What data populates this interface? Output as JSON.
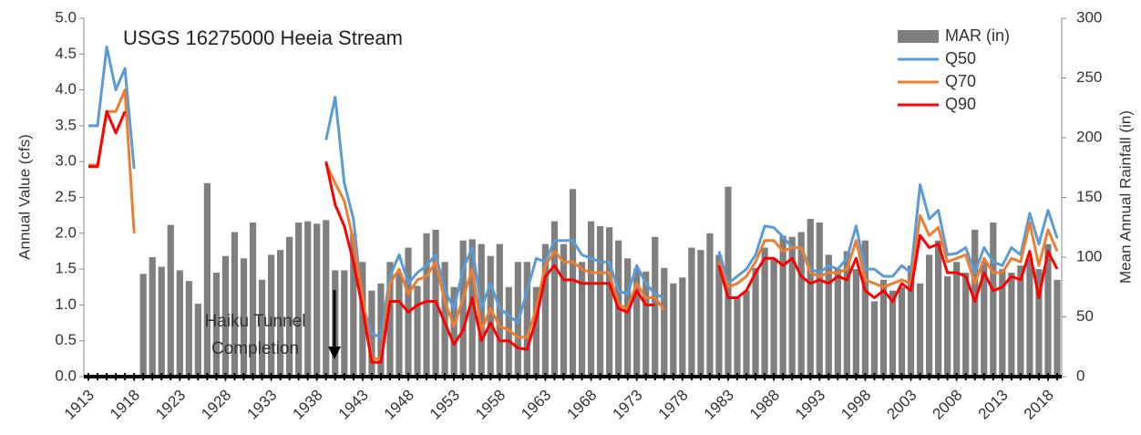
{
  "chart_data": {
    "type": "combo",
    "title": "USGS 16275000 Heeia Stream",
    "y_label": "Annual Value (cfs)",
    "y2_label": "Mean Annual Rainfall (in)",
    "annotation": [
      "Haiku Tunnel",
      "Completion"
    ],
    "x": [
      1913,
      1914,
      1915,
      1916,
      1917,
      1918,
      1919,
      1920,
      1921,
      1922,
      1923,
      1924,
      1925,
      1926,
      1927,
      1928,
      1929,
      1930,
      1931,
      1932,
      1933,
      1934,
      1935,
      1936,
      1937,
      1938,
      1939,
      1940,
      1941,
      1942,
      1943,
      1944,
      1945,
      1946,
      1947,
      1948,
      1949,
      1950,
      1951,
      1952,
      1953,
      1954,
      1955,
      1956,
      1957,
      1958,
      1959,
      1960,
      1961,
      1962,
      1963,
      1964,
      1965,
      1966,
      1967,
      1968,
      1969,
      1970,
      1971,
      1972,
      1973,
      1974,
      1975,
      1976,
      1977,
      1978,
      1979,
      1980,
      1981,
      1982,
      1983,
      1984,
      1985,
      1986,
      1987,
      1988,
      1989,
      1990,
      1991,
      1992,
      1993,
      1994,
      1995,
      1996,
      1997,
      1998,
      1999,
      2000,
      2001,
      2002,
      2003,
      2004,
      2005,
      2006,
      2007,
      2008,
      2009,
      2010,
      2011,
      2012,
      2013,
      2014,
      2015,
      2016,
      2017,
      2018,
      2019
    ],
    "xlim": [
      1912.5,
      2019.5
    ],
    "xticks": [
      1913,
      1918,
      1923,
      1928,
      1933,
      1938,
      1943,
      1948,
      1953,
      1958,
      1963,
      1968,
      1973,
      1978,
      1983,
      1988,
      1993,
      1998,
      2003,
      2008,
      2013,
      2018
    ],
    "ylim": [
      0,
      5
    ],
    "yticks": [
      {
        "value": 0,
        "label": "0.0"
      },
      0.5,
      {
        "value": 1,
        "label": "1.0"
      },
      1.5,
      {
        "value": 2,
        "label": "2.0"
      },
      2.5,
      {
        "value": 3,
        "label": "3.0"
      },
      3.5,
      {
        "value": 4,
        "label": "4.0"
      },
      4.5,
      {
        "value": 5,
        "label": "5.0"
      }
    ],
    "y2lim": [
      0,
      300
    ],
    "y2ticks": [
      0,
      50,
      100,
      150,
      200,
      250,
      300
    ],
    "grid": false,
    "legend": "top-right",
    "series": [
      {
        "name": "MAR (in)",
        "type": "bar",
        "axis": "y2",
        "color": "#7f7f7f",
        "values": [
          null,
          null,
          null,
          null,
          null,
          null,
          86,
          100,
          92,
          127,
          89,
          80,
          61,
          162,
          87,
          101,
          121,
          99,
          129,
          81,
          102,
          106,
          117,
          129,
          130,
          128,
          131,
          89,
          89,
          120,
          96,
          72,
          78,
          96,
          87,
          108,
          76,
          120,
          123,
          96,
          75,
          114,
          115,
          111,
          101,
          111,
          75,
          96,
          96,
          75,
          111,
          130,
          111,
          157,
          96,
          130,
          126,
          125,
          114,
          99,
          90,
          88,
          117,
          91,
          78,
          83,
          108,
          106,
          120,
          102,
          159,
          66,
          72,
          91,
          108,
          99,
          118,
          117,
          121,
          132,
          129,
          102,
          90,
          105,
          90,
          114,
          63,
          81,
          72,
          75,
          93,
          78,
          102,
          114,
          84,
          96,
          87,
          123,
          96,
          129,
          90,
          87,
          93,
          99,
          90,
          111,
          81
        ]
      },
      {
        "name": "Q50",
        "type": "line",
        "color": "#5b9bd5",
        "values": [
          3.5,
          3.5,
          4.6,
          4.0,
          4.3,
          2.9,
          null,
          null,
          null,
          null,
          null,
          null,
          null,
          null,
          null,
          null,
          null,
          null,
          null,
          null,
          null,
          null,
          null,
          null,
          null,
          null,
          3.3,
          3.9,
          2.7,
          2.2,
          1.0,
          0.6,
          0.55,
          1.4,
          1.7,
          1.3,
          1.45,
          1.55,
          1.7,
          1.2,
          0.95,
          1.5,
          1.8,
          0.95,
          1.3,
          0.95,
          0.85,
          0.75,
          1.2,
          1.65,
          1.6,
          1.9,
          1.9,
          1.9,
          1.7,
          1.65,
          1.6,
          1.6,
          1.2,
          1.15,
          1.55,
          1.3,
          1.15,
          1.1,
          null,
          null,
          null,
          null,
          null,
          1.75,
          1.3,
          1.4,
          1.5,
          1.7,
          2.1,
          2.08,
          1.95,
          1.8,
          1.8,
          1.5,
          1.45,
          1.55,
          1.5,
          1.65,
          2.1,
          1.5,
          1.5,
          1.4,
          1.4,
          1.55,
          1.45,
          2.68,
          2.2,
          2.32,
          1.7,
          1.72,
          1.8,
          1.45,
          1.8,
          1.6,
          1.55,
          1.8,
          1.7,
          2.28,
          1.85,
          2.32,
          1.93
        ]
      },
      {
        "name": "Q70",
        "type": "line",
        "color": "#ed7d31",
        "values": [
          2.95,
          2.95,
          3.7,
          3.7,
          4.0,
          2.0,
          null,
          null,
          null,
          null,
          null,
          null,
          null,
          null,
          null,
          null,
          null,
          null,
          null,
          null,
          null,
          null,
          null,
          null,
          null,
          null,
          2.97,
          2.7,
          2.45,
          1.9,
          1.1,
          0.25,
          0.25,
          1.3,
          1.5,
          1.15,
          1.35,
          1.4,
          1.6,
          1.05,
          0.7,
          1.1,
          1.5,
          0.65,
          0.95,
          0.7,
          0.65,
          0.55,
          0.55,
          0.95,
          1.55,
          1.75,
          1.6,
          1.6,
          1.5,
          1.45,
          1.45,
          1.45,
          1.0,
          0.95,
          1.3,
          1.1,
          1.1,
          0.93,
          null,
          null,
          null,
          null,
          null,
          1.6,
          1.25,
          1.3,
          1.4,
          1.6,
          1.9,
          1.9,
          1.75,
          1.8,
          1.8,
          1.45,
          1.4,
          1.45,
          1.45,
          1.5,
          1.9,
          1.35,
          1.3,
          1.25,
          1.3,
          1.35,
          1.3,
          2.25,
          1.97,
          2.08,
          1.6,
          1.65,
          1.7,
          1.3,
          1.65,
          1.45,
          1.45,
          1.65,
          1.6,
          2.15,
          1.55,
          2.05,
          1.75
        ]
      },
      {
        "name": "Q90",
        "type": "line",
        "color": "#ff0000",
        "values": [
          2.93,
          2.93,
          3.7,
          3.4,
          3.7,
          null,
          null,
          null,
          null,
          null,
          null,
          null,
          null,
          null,
          null,
          null,
          null,
          null,
          null,
          null,
          null,
          null,
          null,
          null,
          null,
          null,
          3.0,
          2.4,
          2.1,
          1.6,
          0.95,
          0.2,
          0.2,
          1.05,
          1.05,
          0.9,
          1.0,
          1.05,
          1.05,
          0.75,
          0.45,
          0.65,
          1.1,
          0.5,
          0.75,
          0.5,
          0.5,
          0.4,
          0.38,
          0.8,
          1.4,
          1.55,
          1.35,
          1.35,
          1.3,
          1.3,
          1.3,
          1.3,
          0.95,
          0.9,
          1.2,
          1.0,
          1.0,
          null,
          null,
          null,
          null,
          null,
          null,
          1.55,
          1.1,
          1.1,
          1.2,
          1.45,
          1.65,
          1.65,
          1.55,
          1.65,
          1.4,
          1.3,
          1.35,
          1.3,
          1.4,
          1.35,
          1.65,
          1.2,
          1.1,
          1.2,
          1.05,
          1.3,
          1.2,
          1.97,
          1.8,
          1.85,
          1.45,
          1.45,
          1.4,
          1.05,
          1.45,
          1.2,
          1.25,
          1.4,
          1.35,
          1.75,
          1.1,
          1.75,
          1.5
        ]
      }
    ]
  }
}
